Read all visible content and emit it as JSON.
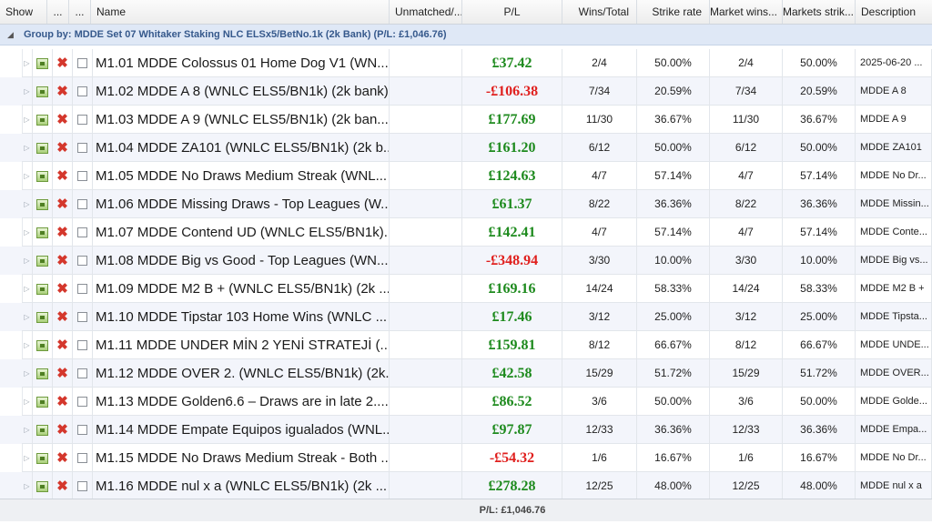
{
  "columns": {
    "show": "Show",
    "dots1": "...",
    "dots2": "...",
    "name": "Name",
    "unmatched": "Unmatched/...",
    "pl": "P/L",
    "wins_total": "Wins/Total",
    "strike_rate": "Strike rate",
    "market_wins": "Market wins...",
    "markets_strike": "Markets strik...",
    "description": "Description"
  },
  "group": {
    "label": "Group by: MDDE Set 07 Whitaker Staking NLC ELSx5/BetNo.1k  (2k Bank) (P/L: £1,046.76)"
  },
  "rows": [
    {
      "name": "M1.01 MDDE Colossus 01 Home Dog V1 (WN...",
      "pl": "£37.42",
      "wt": "2/4",
      "sr": "50.00%",
      "mw": "2/4",
      "ms": "50.00%",
      "desc": "2025-06-20 ...",
      "neg": false
    },
    {
      "name": "M1.02 MDDE A 8 (WNLC ELS5/BN1k) (2k bank)",
      "pl": "-£106.38",
      "wt": "7/34",
      "sr": "20.59%",
      "mw": "7/34",
      "ms": "20.59%",
      "desc": "MDDE A 8",
      "neg": true
    },
    {
      "name": "M1.03 MDDE A 9  (WNLC ELS5/BN1k) (2k ban...",
      "pl": "£177.69",
      "wt": "11/30",
      "sr": "36.67%",
      "mw": "11/30",
      "ms": "36.67%",
      "desc": "MDDE A 9",
      "neg": false
    },
    {
      "name": "M1.04 MDDE ZA101 (WNLC ELS5/BN1k) (2k b...",
      "pl": "£161.20",
      "wt": "6/12",
      "sr": "50.00%",
      "mw": "6/12",
      "ms": "50.00%",
      "desc": "MDDE ZA101",
      "neg": false
    },
    {
      "name": "M1.05 MDDE No Draws Medium Streak (WNL...",
      "pl": "£124.63",
      "wt": "4/7",
      "sr": "57.14%",
      "mw": "4/7",
      "ms": "57.14%",
      "desc": "MDDE No Dr...",
      "neg": false
    },
    {
      "name": "M1.06 MDDE Missing Draws - Top Leagues (W...",
      "pl": "£61.37",
      "wt": "8/22",
      "sr": "36.36%",
      "mw": "8/22",
      "ms": "36.36%",
      "desc": "MDDE Missin...",
      "neg": false
    },
    {
      "name": "M1.07 MDDE Contend UD (WNLC ELS5/BN1k)...",
      "pl": "£142.41",
      "wt": "4/7",
      "sr": "57.14%",
      "mw": "4/7",
      "ms": "57.14%",
      "desc": "MDDE Conte...",
      "neg": false
    },
    {
      "name": "M1.08 MDDE Big vs Good - Top Leagues (WN...",
      "pl": "-£348.94",
      "wt": "3/30",
      "sr": "10.00%",
      "mw": "3/30",
      "ms": "10.00%",
      "desc": "MDDE Big vs...",
      "neg": true
    },
    {
      "name": "M1.09 MDDE M2 B + (WNLC ELS5/BN1k) (2k ...",
      "pl": "£169.16",
      "wt": "14/24",
      "sr": "58.33%",
      "mw": "14/24",
      "ms": "58.33%",
      "desc": "MDDE M2 B +",
      "neg": false
    },
    {
      "name": "M1.10 MDDE Tipstar 103 Home Wins (WNLC ...",
      "pl": "£17.46",
      "wt": "3/12",
      "sr": "25.00%",
      "mw": "3/12",
      "ms": "25.00%",
      "desc": "MDDE Tipsta...",
      "neg": false
    },
    {
      "name": "M1.11 MDDE UNDER MİN 2 YENİ STRATEJİ (...",
      "pl": "£159.81",
      "wt": "8/12",
      "sr": "66.67%",
      "mw": "8/12",
      "ms": "66.67%",
      "desc": "MDDE UNDE...",
      "neg": false
    },
    {
      "name": "M1.12 MDDE OVER 2. (WNLC ELS5/BN1k) (2k...",
      "pl": "£42.58",
      "wt": "15/29",
      "sr": "51.72%",
      "mw": "15/29",
      "ms": "51.72%",
      "desc": "MDDE OVER...",
      "neg": false
    },
    {
      "name": "M1.13 MDDE Golden6.6 – Draws are in late 2....",
      "pl": "£86.52",
      "wt": "3/6",
      "sr": "50.00%",
      "mw": "3/6",
      "ms": "50.00%",
      "desc": "MDDE Golde...",
      "neg": false
    },
    {
      "name": "M1.14 MDDE Empate Equipos igualados (WNL...",
      "pl": "£97.87",
      "wt": "12/33",
      "sr": "36.36%",
      "mw": "12/33",
      "ms": "36.36%",
      "desc": "MDDE Empa...",
      "neg": false
    },
    {
      "name": "M1.15 MDDE No Draws Medium Streak - Both ...",
      "pl": "-£54.32",
      "wt": "1/6",
      "sr": "16.67%",
      "mw": "1/6",
      "ms": "16.67%",
      "desc": "MDDE No Dr...",
      "neg": true
    },
    {
      "name": "M1.16 MDDE nul x a (WNLC ELS5/BN1k) (2k ...",
      "pl": "£278.28",
      "wt": "12/25",
      "sr": "48.00%",
      "mw": "12/25",
      "ms": "48.00%",
      "desc": "MDDE nul x a",
      "neg": false
    }
  ],
  "footer": {
    "total": "P/L: £1,046.76"
  },
  "colors": {
    "positive": "#1d8a1d",
    "negative": "#e0201e",
    "group_text": "#36598c"
  },
  "icons": {
    "strategy": "strategy-sheet-icon",
    "delete": "delete-x-icon",
    "expand": "expand-arrow-icon"
  }
}
